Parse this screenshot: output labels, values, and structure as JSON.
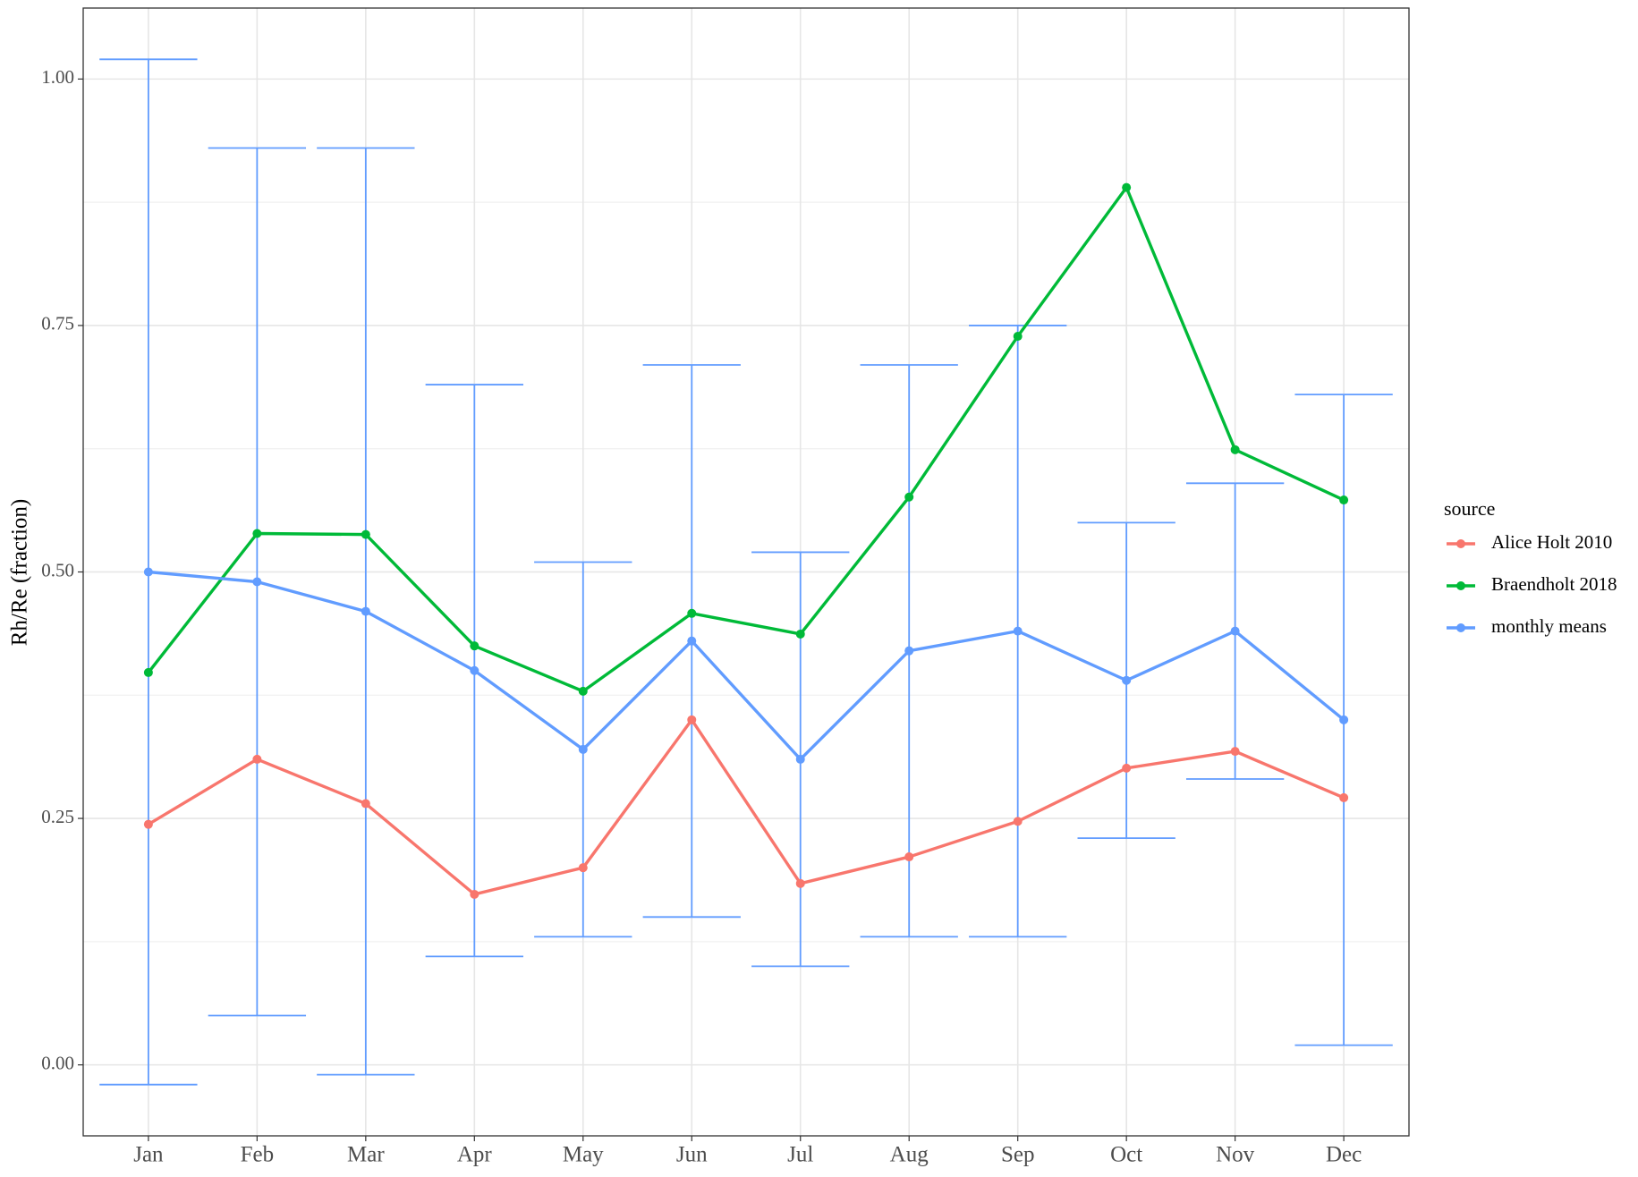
{
  "chart_data": {
    "type": "line",
    "y_label": "Rh/Re (fraction)",
    "legend_title": "source",
    "legend_position": "right",
    "categories": [
      "Jan",
      "Feb",
      "Mar",
      "Apr",
      "May",
      "Jun",
      "Jul",
      "Aug",
      "Sep",
      "Oct",
      "Nov",
      "Dec"
    ],
    "series": [
      {
        "name": "Alice Holt 2010",
        "color": "#F8766D",
        "values": [
          0.244,
          0.31,
          0.265,
          0.173,
          0.2,
          0.35,
          0.184,
          0.211,
          0.247,
          0.301,
          0.318,
          0.271
        ]
      },
      {
        "name": "Braendholt 2018",
        "color": "#00BA38",
        "values": [
          0.398,
          0.539,
          0.538,
          0.425,
          0.379,
          0.458,
          0.437,
          0.576,
          0.739,
          0.89,
          0.624,
          0.573
        ]
      },
      {
        "name": "monthly means",
        "color": "#619CFF",
        "values": [
          0.5,
          0.49,
          0.46,
          0.4,
          0.32,
          0.43,
          0.31,
          0.42,
          0.44,
          0.39,
          0.44,
          0.35
        ],
        "lower": [
          -0.02,
          0.05,
          -0.01,
          0.11,
          0.13,
          0.15,
          0.1,
          0.13,
          0.13,
          0.23,
          0.29,
          0.02
        ],
        "upper": [
          1.02,
          0.93,
          0.93,
          0.69,
          0.51,
          0.71,
          0.52,
          0.71,
          0.75,
          0.55,
          0.59,
          0.68
        ]
      }
    ],
    "ylim": [
      -0.072,
      1.072
    ],
    "yticks": [
      {
        "value": 0,
        "label": "0.00"
      },
      {
        "value": 0.25,
        "label": "0.25"
      },
      {
        "value": 0.5,
        "label": "0.50"
      },
      {
        "value": 0.75,
        "label": "0.75"
      },
      {
        "value": 1,
        "label": "1.00"
      }
    ],
    "minor_yticks": [
      0.125,
      0.375,
      0.625,
      0.875
    ],
    "grid": true
  }
}
